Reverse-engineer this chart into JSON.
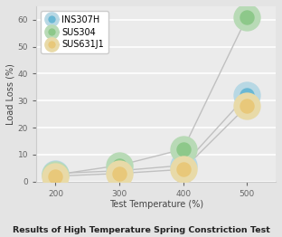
{
  "title": "Results of High Temperature Spring Constriction Test",
  "xlabel": "Test Temperature (%)",
  "ylabel": "Load Loss (%)",
  "series": [
    {
      "name": "INS307H",
      "x": [
        200,
        300,
        400,
        500
      ],
      "y": [
        3.0,
        4.0,
        6.0,
        32.0
      ],
      "color": "#6ab8d4",
      "marker_edge": "#b8d8e4"
    },
    {
      "name": "SUS304",
      "x": [
        200,
        300,
        400,
        500
      ],
      "y": [
        2.5,
        6.0,
        12.0,
        61.0
      ],
      "color": "#8dc88a",
      "marker_edge": "#b8dab6"
    },
    {
      "name": "SUS631J1",
      "x": [
        200,
        300,
        400,
        500
      ],
      "y": [
        2.0,
        3.0,
        4.5,
        28.0
      ],
      "color": "#e8c87a",
      "marker_edge": "#e8daa8"
    }
  ],
  "xlim": [
    170,
    545
  ],
  "ylim": [
    0,
    65
  ],
  "xticks": [
    200,
    300,
    400,
    500
  ],
  "yticks": [
    0,
    10,
    20,
    30,
    40,
    50,
    60
  ],
  "background_color": "#e4e4e4",
  "plot_bg_color": "#ebebeb",
  "grid_color": "#ffffff",
  "line_color": "#c0c0c0",
  "marker_size": 9,
  "marker_edge_width": 5,
  "line_width": 1.0,
  "tick_fontsize": 6.5,
  "label_fontsize": 7.0,
  "legend_fontsize": 7.0,
  "title_fontsize": 6.8
}
